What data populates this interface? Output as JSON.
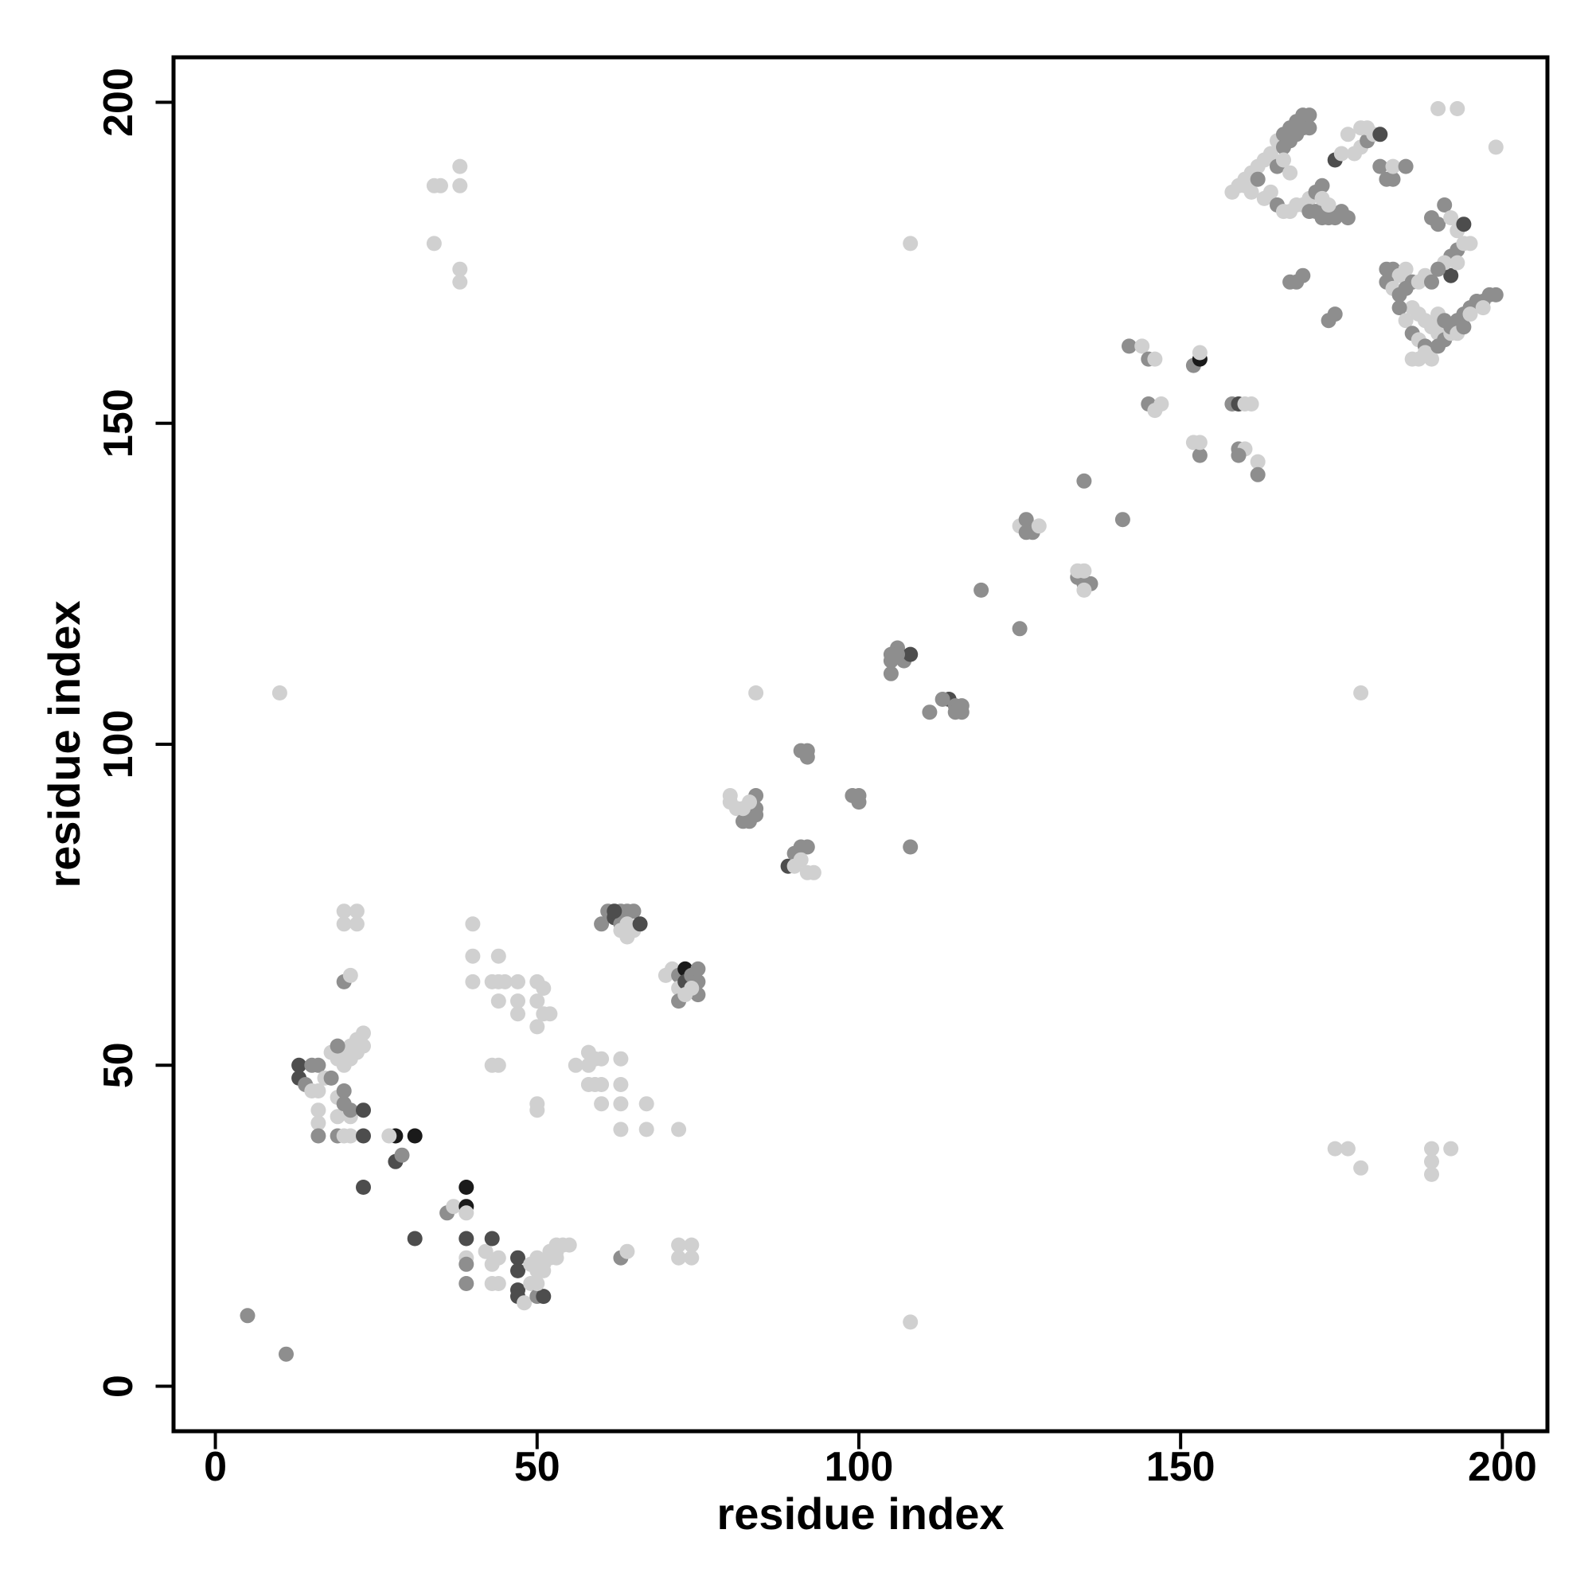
{
  "chart_data": {
    "type": "scatter",
    "title": "",
    "xlabel": "residue index",
    "ylabel": "residue index",
    "xlim": [
      -6.5,
      207
    ],
    "ylim": [
      -7,
      207
    ],
    "xticks": [
      0,
      50,
      100,
      150,
      200
    ],
    "yticks": [
      0,
      50,
      100,
      150,
      200
    ],
    "grid": false,
    "legend": "none",
    "colors": {
      "light": "#d0d0d0",
      "mid": "#8e8e8e",
      "dark": "#4d4d4d",
      "black": "#1a1a1a"
    },
    "shade_levels": [
      "light",
      "mid",
      "dark",
      "black"
    ],
    "points": [
      [
        5,
        11,
        1
      ],
      [
        11,
        5,
        1
      ],
      [
        10,
        108,
        0
      ],
      [
        108,
        10,
        0
      ],
      [
        108,
        178,
        0
      ],
      [
        178,
        108,
        0
      ],
      [
        34,
        187,
        0
      ],
      [
        35,
        187,
        0
      ],
      [
        38,
        187,
        0
      ],
      [
        38,
        190,
        0
      ],
      [
        34,
        178,
        0
      ],
      [
        38,
        174,
        0
      ],
      [
        38,
        172,
        0
      ],
      [
        178,
        34,
        0
      ],
      [
        176,
        37,
        0
      ],
      [
        174,
        37,
        0
      ],
      [
        189,
        37,
        0
      ],
      [
        189,
        35,
        0
      ],
      [
        192,
        37,
        0
      ],
      [
        189,
        33,
        0
      ],
      [
        13,
        50,
        2
      ],
      [
        13,
        48,
        2
      ],
      [
        14,
        47,
        1
      ],
      [
        15,
        50,
        1
      ],
      [
        16,
        50,
        1
      ],
      [
        15,
        46,
        0
      ],
      [
        16,
        46,
        0
      ],
      [
        17,
        48,
        0
      ],
      [
        18,
        48,
        1
      ],
      [
        16,
        43,
        0
      ],
      [
        16,
        41,
        0
      ],
      [
        16,
        39,
        1
      ],
      [
        19,
        39,
        1
      ],
      [
        20,
        39,
        0
      ],
      [
        21,
        39,
        0
      ],
      [
        19,
        42,
        0
      ],
      [
        21,
        42,
        0
      ],
      [
        19,
        45,
        0
      ],
      [
        20,
        46,
        1
      ],
      [
        20,
        44,
        1
      ],
      [
        21,
        43,
        1
      ],
      [
        23,
        39,
        2
      ],
      [
        23,
        43,
        2
      ],
      [
        23,
        31,
        2
      ],
      [
        28,
        39,
        3
      ],
      [
        31,
        39,
        3
      ],
      [
        28,
        35,
        2
      ],
      [
        29,
        36,
        1
      ],
      [
        27,
        39,
        0
      ],
      [
        18,
        52,
        0
      ],
      [
        19,
        51,
        0
      ],
      [
        20,
        52,
        0
      ],
      [
        21,
        53,
        0
      ],
      [
        22,
        54,
        0
      ],
      [
        23,
        55,
        0
      ],
      [
        19,
        53,
        1
      ],
      [
        20,
        50,
        0
      ],
      [
        21,
        51,
        0
      ],
      [
        22,
        52,
        0
      ],
      [
        23,
        53,
        0
      ],
      [
        20,
        63,
        1
      ],
      [
        21,
        64,
        0
      ],
      [
        20,
        72,
        0
      ],
      [
        20,
        74,
        0
      ],
      [
        22,
        74,
        0
      ],
      [
        22,
        72,
        0
      ],
      [
        36,
        27,
        1
      ],
      [
        37,
        28,
        0
      ],
      [
        39,
        31,
        3
      ],
      [
        39,
        28,
        3
      ],
      [
        39,
        27,
        0
      ],
      [
        39,
        23,
        2
      ],
      [
        39,
        20,
        0
      ],
      [
        39,
        19,
        1
      ],
      [
        39,
        16,
        1
      ],
      [
        42,
        21,
        0
      ],
      [
        31,
        23,
        2
      ],
      [
        43,
        23,
        2
      ],
      [
        43,
        19,
        0
      ],
      [
        44,
        20,
        0
      ],
      [
        43,
        16,
        0
      ],
      [
        44,
        16,
        0
      ],
      [
        47,
        20,
        2
      ],
      [
        47,
        18,
        2
      ],
      [
        47,
        15,
        2
      ],
      [
        47,
        14,
        2
      ],
      [
        48,
        13,
        0
      ],
      [
        49,
        16,
        0
      ],
      [
        50,
        14,
        1
      ],
      [
        51,
        14,
        2
      ],
      [
        50,
        16,
        0
      ],
      [
        50,
        18,
        0
      ],
      [
        49,
        19,
        0
      ],
      [
        51,
        19,
        0
      ],
      [
        52,
        20,
        0
      ],
      [
        52,
        21,
        0
      ],
      [
        53,
        21,
        0
      ],
      [
        53,
        22,
        0
      ],
      [
        55,
        22,
        0
      ],
      [
        51,
        18,
        0
      ],
      [
        53,
        20,
        0
      ],
      [
        50,
        20,
        0
      ],
      [
        54,
        22,
        0
      ],
      [
        40,
        72,
        0
      ],
      [
        40,
        67,
        0
      ],
      [
        40,
        63,
        0
      ],
      [
        43,
        63,
        0
      ],
      [
        44,
        63,
        0
      ],
      [
        45,
        63,
        0
      ],
      [
        44,
        67,
        0
      ],
      [
        44,
        60,
        0
      ],
      [
        47,
        63,
        0
      ],
      [
        47,
        60,
        0
      ],
      [
        47,
        58,
        0
      ],
      [
        50,
        63,
        0
      ],
      [
        50,
        60,
        0
      ],
      [
        50,
        56,
        0
      ],
      [
        51,
        58,
        0
      ],
      [
        52,
        58,
        0
      ],
      [
        51,
        62,
        0
      ],
      [
        50,
        44,
        0
      ],
      [
        50,
        43,
        0
      ],
      [
        43,
        50,
        0
      ],
      [
        44,
        50,
        0
      ],
      [
        56,
        50,
        0
      ],
      [
        58,
        50,
        0
      ],
      [
        58,
        52,
        0
      ],
      [
        59,
        51,
        0
      ],
      [
        60,
        51,
        0
      ],
      [
        58,
        47,
        0
      ],
      [
        59,
        47,
        0
      ],
      [
        60,
        47,
        0
      ],
      [
        60,
        44,
        0
      ],
      [
        63,
        47,
        0
      ],
      [
        63,
        44,
        0
      ],
      [
        63,
        40,
        0
      ],
      [
        63,
        51,
        0
      ],
      [
        67,
        44,
        0
      ],
      [
        67,
        40,
        0
      ],
      [
        72,
        40,
        0
      ],
      [
        63,
        20,
        1
      ],
      [
        64,
        21,
        0
      ],
      [
        72,
        20,
        0
      ],
      [
        72,
        22,
        0
      ],
      [
        74,
        22,
        0
      ],
      [
        74,
        20,
        0
      ],
      [
        60,
        72,
        1
      ],
      [
        61,
        74,
        1
      ],
      [
        62,
        73,
        2
      ],
      [
        63,
        74,
        1
      ],
      [
        64,
        74,
        1
      ],
      [
        65,
        74,
        1
      ],
      [
        63,
        72,
        1
      ],
      [
        64,
        72,
        0
      ],
      [
        63,
        71,
        0
      ],
      [
        64,
        70,
        0
      ],
      [
        65,
        71,
        0
      ],
      [
        66,
        72,
        2
      ],
      [
        62,
        74,
        2
      ],
      [
        70,
        64,
        0
      ],
      [
        71,
        65,
        0
      ],
      [
        72,
        64,
        1
      ],
      [
        72,
        62,
        0
      ],
      [
        73,
        65,
        3
      ],
      [
        73,
        63,
        2
      ],
      [
        74,
        64,
        1
      ],
      [
        75,
        63,
        1
      ],
      [
        75,
        61,
        1
      ],
      [
        72,
        60,
        1
      ],
      [
        73,
        61,
        0
      ],
      [
        74,
        62,
        0
      ],
      [
        75,
        65,
        1
      ],
      [
        80,
        91,
        0
      ],
      [
        80,
        92,
        0
      ],
      [
        81,
        90,
        0
      ],
      [
        82,
        88,
        1
      ],
      [
        83,
        88,
        1
      ],
      [
        84,
        90,
        1
      ],
      [
        84,
        89,
        1
      ],
      [
        84,
        92,
        1
      ],
      [
        83,
        91,
        0
      ],
      [
        82,
        90,
        0
      ],
      [
        84,
        108,
        0
      ],
      [
        89,
        81,
        2
      ],
      [
        90,
        83,
        1
      ],
      [
        91,
        84,
        1
      ],
      [
        92,
        84,
        1
      ],
      [
        91,
        82,
        0
      ],
      [
        92,
        80,
        0
      ],
      [
        93,
        80,
        0
      ],
      [
        90,
        81,
        0
      ],
      [
        91,
        99,
        1
      ],
      [
        92,
        98,
        1
      ],
      [
        92,
        99,
        1
      ],
      [
        99,
        92,
        1
      ],
      [
        100,
        91,
        1
      ],
      [
        100,
        92,
        1
      ],
      [
        108,
        84,
        1
      ],
      [
        105,
        114,
        1
      ],
      [
        106,
        115,
        1
      ],
      [
        107,
        113,
        1
      ],
      [
        108,
        114,
        2
      ],
      [
        105,
        113,
        1
      ],
      [
        105,
        111,
        1
      ],
      [
        106,
        114,
        1
      ],
      [
        111,
        105,
        1
      ],
      [
        114,
        107,
        2
      ],
      [
        115,
        106,
        1
      ],
      [
        116,
        105,
        1
      ],
      [
        115,
        105,
        1
      ],
      [
        113,
        107,
        1
      ],
      [
        116,
        106,
        1
      ],
      [
        119,
        124,
        1
      ],
      [
        125,
        118,
        1
      ],
      [
        125,
        134,
        0
      ],
      [
        126,
        135,
        1
      ],
      [
        127,
        133,
        1
      ],
      [
        126,
        133,
        1
      ],
      [
        128,
        134,
        0
      ],
      [
        134,
        126,
        1
      ],
      [
        135,
        125,
        1
      ],
      [
        136,
        125,
        1
      ],
      [
        135,
        127,
        0
      ],
      [
        135,
        124,
        0
      ],
      [
        134,
        127,
        0
      ],
      [
        135,
        141,
        1
      ],
      [
        141,
        135,
        1
      ],
      [
        142,
        162,
        1
      ],
      [
        144,
        162,
        0
      ],
      [
        145,
        160,
        1
      ],
      [
        146,
        160,
        0
      ],
      [
        145,
        153,
        1
      ],
      [
        147,
        153,
        0
      ],
      [
        146,
        152,
        0
      ],
      [
        152,
        159,
        1
      ],
      [
        153,
        160,
        3
      ],
      [
        153,
        161,
        0
      ],
      [
        152,
        147,
        0
      ],
      [
        153,
        145,
        1
      ],
      [
        153,
        147,
        0
      ],
      [
        158,
        153,
        1
      ],
      [
        159,
        153,
        2
      ],
      [
        160,
        153,
        0
      ],
      [
        161,
        153,
        0
      ],
      [
        159,
        146,
        1
      ],
      [
        160,
        146,
        0
      ],
      [
        162,
        144,
        0
      ],
      [
        162,
        142,
        1
      ],
      [
        159,
        145,
        1
      ],
      [
        158,
        186,
        0
      ],
      [
        159,
        187,
        0
      ],
      [
        160,
        188,
        0
      ],
      [
        161,
        189,
        0
      ],
      [
        162,
        190,
        0
      ],
      [
        163,
        191,
        0
      ],
      [
        164,
        192,
        0
      ],
      [
        160,
        187,
        0
      ],
      [
        161,
        186,
        0
      ],
      [
        162,
        188,
        1
      ],
      [
        163,
        185,
        0
      ],
      [
        164,
        186,
        0
      ],
      [
        165,
        194,
        0
      ],
      [
        166,
        195,
        1
      ],
      [
        167,
        196,
        1
      ],
      [
        168,
        197,
        1
      ],
      [
        169,
        198,
        1
      ],
      [
        170,
        198,
        1
      ],
      [
        166,
        193,
        1
      ],
      [
        167,
        194,
        1
      ],
      [
        168,
        195,
        1
      ],
      [
        169,
        196,
        1
      ],
      [
        170,
        196,
        1
      ],
      [
        165,
        190,
        1
      ],
      [
        166,
        191,
        0
      ],
      [
        167,
        189,
        0
      ],
      [
        165,
        184,
        1
      ],
      [
        166,
        183,
        0
      ],
      [
        167,
        183,
        0
      ],
      [
        168,
        184,
        0
      ],
      [
        169,
        184,
        0
      ],
      [
        170,
        185,
        0
      ],
      [
        171,
        186,
        1
      ],
      [
        172,
        187,
        1
      ],
      [
        170,
        183,
        1
      ],
      [
        171,
        183,
        1
      ],
      [
        172,
        182,
        1
      ],
      [
        173,
        182,
        1
      ],
      [
        174,
        182,
        1
      ],
      [
        175,
        183,
        1
      ],
      [
        176,
        182,
        1
      ],
      [
        172,
        185,
        0
      ],
      [
        173,
        184,
        0
      ],
      [
        174,
        191,
        2
      ],
      [
        175,
        192,
        0
      ],
      [
        176,
        195,
        0
      ],
      [
        177,
        192,
        0
      ],
      [
        178,
        193,
        0
      ],
      [
        179,
        194,
        1
      ],
      [
        178,
        196,
        0
      ],
      [
        179,
        196,
        0
      ],
      [
        180,
        195,
        0
      ],
      [
        181,
        195,
        2
      ],
      [
        182,
        188,
        1
      ],
      [
        183,
        188,
        1
      ],
      [
        181,
        190,
        1
      ],
      [
        183,
        190,
        0
      ],
      [
        185,
        190,
        1
      ],
      [
        173,
        166,
        1
      ],
      [
        174,
        167,
        1
      ],
      [
        167,
        172,
        1
      ],
      [
        168,
        172,
        1
      ],
      [
        169,
        173,
        1
      ],
      [
        182,
        174,
        1
      ],
      [
        183,
        174,
        1
      ],
      [
        184,
        173,
        0
      ],
      [
        185,
        174,
        0
      ],
      [
        182,
        172,
        1
      ],
      [
        183,
        171,
        0
      ],
      [
        184,
        170,
        1
      ],
      [
        185,
        171,
        1
      ],
      [
        186,
        172,
        1
      ],
      [
        187,
        172,
        0
      ],
      [
        188,
        173,
        0
      ],
      [
        189,
        172,
        1
      ],
      [
        186,
        168,
        0
      ],
      [
        187,
        167,
        0
      ],
      [
        188,
        166,
        0
      ],
      [
        189,
        165,
        0
      ],
      [
        190,
        164,
        0
      ],
      [
        184,
        168,
        1
      ],
      [
        185,
        166,
        0
      ],
      [
        186,
        164,
        1
      ],
      [
        187,
        163,
        0
      ],
      [
        188,
        162,
        1
      ],
      [
        186,
        160,
        0
      ],
      [
        187,
        160,
        0
      ],
      [
        188,
        161,
        0
      ],
      [
        189,
        160,
        0
      ],
      [
        190,
        162,
        1
      ],
      [
        191,
        163,
        1
      ],
      [
        192,
        164,
        0
      ],
      [
        193,
        166,
        1
      ],
      [
        194,
        167,
        1
      ],
      [
        195,
        168,
        1
      ],
      [
        196,
        169,
        1
      ],
      [
        197,
        169,
        1
      ],
      [
        198,
        170,
        1
      ],
      [
        199,
        170,
        1
      ],
      [
        190,
        167,
        0
      ],
      [
        191,
        166,
        1
      ],
      [
        192,
        165,
        1
      ],
      [
        193,
        164,
        0
      ],
      [
        194,
        165,
        1
      ],
      [
        195,
        167,
        0
      ],
      [
        189,
        182,
        1
      ],
      [
        190,
        181,
        1
      ],
      [
        191,
        184,
        1
      ],
      [
        192,
        182,
        0
      ],
      [
        193,
        180,
        0
      ],
      [
        194,
        181,
        2
      ],
      [
        192,
        176,
        1
      ],
      [
        193,
        177,
        1
      ],
      [
        194,
        178,
        0
      ],
      [
        195,
        178,
        0
      ],
      [
        192,
        173,
        2
      ],
      [
        191,
        175,
        0
      ],
      [
        190,
        174,
        1
      ],
      [
        193,
        175,
        0
      ],
      [
        190,
        199,
        0
      ],
      [
        193,
        199,
        0
      ],
      [
        199,
        193,
        0
      ],
      [
        197,
        168,
        0
      ]
    ]
  }
}
